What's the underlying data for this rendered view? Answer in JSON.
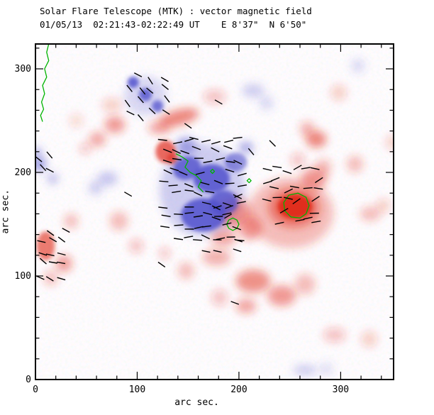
{
  "header": {
    "title": "Solar Flare Telescope (MTK) : vector magnetic field",
    "subtitle": "01/05/13  02:21:43-02:22:49 UT    E 8'37\"  N 6'50\""
  },
  "axes": {
    "xlabel": "arc sec.",
    "ylabel": "arc sec.",
    "x_ticks": [
      0,
      100,
      200,
      300
    ],
    "y_ticks": [
      0,
      100,
      200,
      300
    ],
    "x_range": [
      0,
      352
    ],
    "y_range": [
      0,
      324
    ],
    "minor_tick_step": 20,
    "grid": false
  },
  "colors": {
    "positive": "#e02818",
    "negative": "#5050cc",
    "contour": "#00b400",
    "vector": "#000000",
    "frame": "#000000",
    "background": "#ffffff"
  },
  "chart_data": {
    "type": "heatmap",
    "subtype": "solar vector magnetogram",
    "title": "Solar Flare Telescope (MTK) : vector magnetic field",
    "units": "arc sec.",
    "legend": "red = positive polarity, blue = negative polarity, black segments = transverse field vectors, green = contours",
    "blobs": [
      [
        96,
        287,
        5.5,
        5.5,
        0.85,
        "N",
        0
      ],
      [
        108,
        275,
        6.3,
        6.3,
        0.8,
        "N",
        0
      ],
      [
        120,
        264,
        5.6,
        5.6,
        0.75,
        "N",
        0
      ],
      [
        108,
        274,
        21,
        19,
        0.22,
        "N",
        0
      ],
      [
        164,
        183,
        42,
        45,
        0.28,
        "N",
        0
      ],
      [
        149,
        204,
        14,
        11,
        0.8,
        "N",
        -20
      ],
      [
        173,
        194,
        18,
        14,
        0.85,
        "N",
        0
      ],
      [
        165,
        159,
        22,
        16,
        0.85,
        "N",
        0
      ],
      [
        185,
        171,
        14,
        12,
        0.8,
        "N",
        0
      ],
      [
        197,
        210,
        11,
        9,
        0.6,
        "N",
        0
      ],
      [
        207,
        224,
        7,
        5.5,
        0.5,
        "N",
        0
      ],
      [
        3.5,
        208,
        7,
        7,
        0.55,
        "N",
        0
      ],
      [
        1,
        219,
        5.5,
        5.5,
        0.4,
        "N",
        0
      ],
      [
        17,
        194,
        5.5,
        5.5,
        0.35,
        "N",
        0
      ],
      [
        71,
        194,
        10,
        7,
        0.3,
        "N",
        0
      ],
      [
        59,
        185,
        7,
        7,
        0.25,
        "N",
        0
      ],
      [
        214,
        279,
        11,
        7,
        0.25,
        "N",
        0
      ],
      [
        227,
        267,
        7,
        7,
        0.2,
        "N",
        0
      ],
      [
        265,
        9,
        12,
        5.5,
        0.25,
        "N",
        0
      ],
      [
        286,
        10,
        7,
        7,
        0.15,
        "N",
        0
      ],
      [
        148,
        226,
        10,
        8,
        0.5,
        "N",
        0
      ],
      [
        317,
        303,
        7,
        7,
        0.18,
        "N",
        0
      ],
      [
        251,
        161,
        42,
        34,
        0.3,
        "P",
        0
      ],
      [
        254,
        166,
        25,
        19,
        0.5,
        "P",
        0
      ],
      [
        255,
        167,
        17,
        12,
        0.92,
        "P",
        0
      ],
      [
        274,
        194,
        12.5,
        10,
        0.45,
        "P",
        0
      ],
      [
        283,
        205,
        8,
        8,
        0.3,
        "P",
        0
      ],
      [
        276,
        232,
        10,
        8,
        0.55,
        "P",
        0
      ],
      [
        267,
        242,
        7,
        7,
        0.35,
        "P",
        0
      ],
      [
        314,
        208,
        8,
        8,
        0.3,
        "P",
        0
      ],
      [
        329,
        160,
        10,
        7,
        0.3,
        "P",
        0
      ],
      [
        342,
        168,
        7,
        7,
        0.2,
        "P",
        0
      ],
      [
        141,
        253,
        20,
        7.5,
        0.55,
        "P",
        -15
      ],
      [
        122,
        243,
        11,
        6,
        0.4,
        "P",
        0
      ],
      [
        78,
        246,
        10,
        8,
        0.45,
        "P",
        0
      ],
      [
        61,
        232,
        8,
        7,
        0.4,
        "P",
        0
      ],
      [
        49,
        223,
        5.5,
        5.5,
        0.25,
        "P",
        0
      ],
      [
        128,
        220,
        10,
        11,
        0.7,
        "P",
        0
      ],
      [
        135,
        213,
        5.5,
        5.5,
        0.6,
        "P",
        0
      ],
      [
        195,
        161,
        17,
        14,
        0.45,
        "P",
        0
      ],
      [
        185,
        137,
        12.5,
        8,
        0.4,
        "P",
        0
      ],
      [
        211,
        146,
        11,
        11,
        0.45,
        "P",
        0
      ],
      [
        178,
        118,
        14,
        8,
        0.35,
        "P",
        0
      ],
      [
        214,
        95,
        17,
        11,
        0.5,
        "P",
        0
      ],
      [
        242,
        81,
        14,
        10,
        0.45,
        "P",
        0
      ],
      [
        207,
        71,
        10,
        7,
        0.4,
        "P",
        0
      ],
      [
        181,
        79,
        8,
        8,
        0.25,
        "P",
        0
      ],
      [
        265,
        92,
        10,
        10,
        0.3,
        "P",
        0
      ],
      [
        10,
        129,
        9,
        14,
        0.6,
        "P",
        0
      ],
      [
        28,
        112,
        8,
        8,
        0.45,
        "P",
        0
      ],
      [
        15,
        98,
        7,
        7,
        0.3,
        "P",
        0
      ],
      [
        35,
        153,
        7,
        7,
        0.3,
        "P",
        0
      ],
      [
        82,
        153,
        9,
        9,
        0.3,
        "P",
        0
      ],
      [
        99,
        129,
        7,
        7,
        0.25,
        "P",
        0
      ],
      [
        148,
        105,
        8,
        8,
        0.3,
        "P",
        0
      ],
      [
        127,
        122,
        5.5,
        5.5,
        0.25,
        "P",
        0
      ],
      [
        294,
        43,
        11,
        7,
        0.25,
        "P",
        0
      ],
      [
        328,
        39,
        8,
        8,
        0.2,
        "P",
        0
      ],
      [
        176,
        273,
        11,
        7,
        0.25,
        "P",
        0
      ],
      [
        298,
        277,
        8,
        8,
        0.2,
        "P",
        0
      ],
      [
        75,
        265,
        10,
        7,
        0.2,
        "P",
        0
      ],
      [
        40,
        250,
        7,
        7,
        0.15,
        "P",
        0
      ],
      [
        351,
        229,
        7,
        7,
        0.2,
        "P",
        0
      ],
      [
        258,
        212,
        7,
        7,
        0.25,
        "P",
        0
      ]
    ],
    "contours": [
      {
        "closed": false,
        "points": [
          [
            13,
            324
          ],
          [
            11,
            316
          ],
          [
            13,
            308
          ],
          [
            9,
            300
          ],
          [
            11,
            292
          ],
          [
            7,
            284
          ],
          [
            9,
            276
          ],
          [
            6,
            268
          ],
          [
            8,
            261
          ],
          [
            5,
            255
          ],
          [
            7,
            249
          ]
        ]
      },
      {
        "closed": false,
        "points": [
          [
            138,
            218
          ],
          [
            144,
            215
          ],
          [
            150,
            211
          ],
          [
            147,
            205
          ],
          [
            152,
            200
          ],
          [
            158,
            197
          ],
          [
            163,
            192
          ],
          [
            160,
            186
          ],
          [
            165,
            181
          ]
        ]
      },
      {
        "closed": true,
        "points": [
          [
            200,
            150
          ],
          [
            198,
            154
          ],
          [
            194,
            156
          ],
          [
            190,
            154
          ],
          [
            188,
            150
          ],
          [
            190,
            146
          ],
          [
            194,
            144
          ],
          [
            198,
            146
          ]
        ]
      },
      {
        "closed": true,
        "points": [
          [
            269,
            168
          ],
          [
            266,
            176
          ],
          [
            258,
            180
          ],
          [
            249,
            178
          ],
          [
            244,
            171
          ],
          [
            245,
            163
          ],
          [
            251,
            157
          ],
          [
            260,
            156
          ],
          [
            266,
            160
          ]
        ]
      },
      {
        "closed": true,
        "points": [
          [
            176,
            201
          ],
          [
            174,
            203
          ],
          [
            172,
            201
          ],
          [
            174,
            199
          ]
        ]
      },
      {
        "closed": true,
        "points": [
          [
            212,
            192
          ],
          [
            210,
            194
          ],
          [
            208,
            192
          ],
          [
            210,
            190
          ]
        ]
      }
    ],
    "vector_clusters": [
      {
        "x0": 85,
        "y0": 250,
        "x1": 135,
        "y1": 298,
        "step": 12,
        "angle": -40,
        "jitter": 18,
        "keep": 0.8,
        "len": 12
      },
      {
        "x0": 122,
        "y0": 132,
        "x1": 210,
        "y1": 235,
        "step": 10.5,
        "angle": -5,
        "jitter": 22,
        "keep": 0.85,
        "len": 13
      },
      {
        "x0": 222,
        "y0": 148,
        "x1": 285,
        "y1": 208,
        "step": 10,
        "angle": 10,
        "jitter": 30,
        "keep": 0.8,
        "len": 13
      },
      {
        "x0": 0,
        "y0": 95,
        "x1": 32,
        "y1": 148,
        "step": 11,
        "angle": -25,
        "jitter": 18,
        "keep": 0.8,
        "len": 12
      },
      {
        "x0": 0,
        "y0": 200,
        "x1": 16,
        "y1": 222,
        "step": 10,
        "angle": -40,
        "jitter": 15,
        "keep": 0.9,
        "len": 12
      },
      {
        "x0": 165,
        "y0": 120,
        "x1": 200,
        "y1": 142,
        "step": 10,
        "angle": -10,
        "jitter": 15,
        "keep": 0.75,
        "len": 12
      },
      {
        "x0": 174,
        "y0": 153,
        "x1": 208,
        "y1": 185,
        "step": 10.5,
        "angle": 15,
        "jitter": 25,
        "keep": 0.7,
        "len": 12
      }
    ],
    "vector_singles": [
      [
        180,
        268,
        -30
      ],
      [
        196,
        74,
        -20
      ],
      [
        124,
        111,
        -35
      ],
      [
        233,
        228,
        -45
      ],
      [
        212,
        220,
        -50
      ],
      [
        150,
        245,
        -35
      ],
      [
        91,
        179,
        -30
      ]
    ]
  }
}
